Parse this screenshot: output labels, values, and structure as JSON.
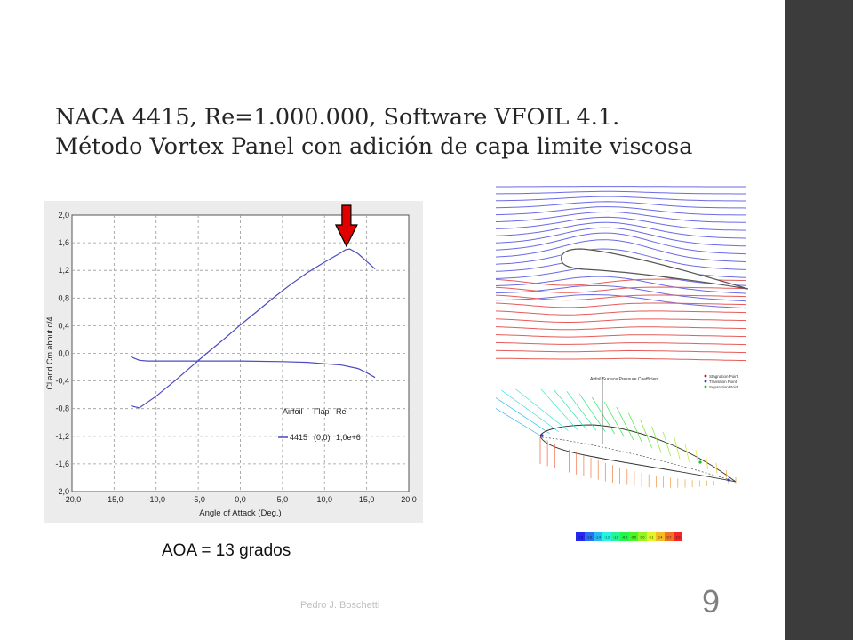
{
  "slide": {
    "title_line1": "NACA 4415, Re=1.000.000, Software VFOIL 4.1.",
    "title_line2": "Método Vortex Panel con adición de capa limite viscosa",
    "caption": "AOA = 13 grados",
    "footer": "Pedro J. Boschetti",
    "page_number": "9"
  },
  "chart_data": {
    "type": "line",
    "xlabel": "Angle of Attack (Deg.)",
    "ylabel": "Cl and Cm about c/4",
    "xlim": [
      -20,
      20
    ],
    "ylim": [
      -2,
      2
    ],
    "x_ticks": [
      "-20,0",
      "-15,0",
      "-10,0",
      "-5,0",
      "0,0",
      "5,0",
      "10,0",
      "15,0",
      "20,0"
    ],
    "y_ticks": [
      "2,0",
      "1,6",
      "1,2",
      "0,8",
      "0,4",
      "0,0",
      "-0,4",
      "-0,8",
      "-1,2",
      "-1,6",
      "-2,0"
    ],
    "grid": true,
    "legend": {
      "headers": [
        "Airfoil",
        "Flap",
        "Re"
      ],
      "entries": [
        {
          "airfoil": "4415",
          "flap": "(0,0)",
          "re": "1,0e+6"
        }
      ]
    },
    "series": [
      {
        "points": [
          [
            -13,
            -0.76
          ],
          [
            -12,
            -0.79
          ],
          [
            -10,
            -0.62
          ],
          [
            -8,
            -0.42
          ],
          [
            -6,
            -0.21
          ],
          [
            -4,
            0.0
          ],
          [
            -2,
            0.2
          ],
          [
            0,
            0.41
          ],
          [
            2,
            0.61
          ],
          [
            4,
            0.81
          ],
          [
            6,
            1.0
          ],
          [
            8,
            1.17
          ],
          [
            10,
            1.32
          ],
          [
            12,
            1.46
          ],
          [
            12.5,
            1.5
          ],
          [
            13,
            1.51
          ],
          [
            14,
            1.44
          ],
          [
            15,
            1.33
          ],
          [
            16,
            1.22
          ]
        ]
      },
      {
        "points": [
          [
            -13,
            -0.05
          ],
          [
            -12,
            -0.1
          ],
          [
            -11,
            -0.11
          ],
          [
            -8,
            -0.11
          ],
          [
            -5,
            -0.11
          ],
          [
            0,
            -0.11
          ],
          [
            5,
            -0.12
          ],
          [
            8,
            -0.13
          ],
          [
            10,
            -0.15
          ],
          [
            12,
            -0.17
          ],
          [
            14,
            -0.22
          ],
          [
            15,
            -0.28
          ],
          [
            16,
            -0.35
          ]
        ]
      }
    ],
    "annotation": {
      "x": 12.6,
      "color": "#e00000"
    }
  },
  "cp_panel": {
    "title": "Airfoil Surface Pressure Coefficient",
    "legend": [
      "Stagnation Point",
      "Transition Point",
      "Separation Point"
    ],
    "legend_colors": [
      "#e00000",
      "#2040e0",
      "#20c020"
    ],
    "scale_labels": [
      "-1.8",
      "-1.6",
      "-1.4",
      "-1.2",
      "-1.0",
      "-0.8",
      "-0.5",
      "0.0",
      "0.1",
      "0.4",
      "0.7",
      "1.0"
    ]
  },
  "colors": {
    "series": "#4b4bbf",
    "grid": "#9a9a9a",
    "upper_streamlines": "#6a6ae6",
    "lower_streamlines": "#e65a5a",
    "airfoil": "#555555",
    "sidebar": "#3c3c3c"
  }
}
